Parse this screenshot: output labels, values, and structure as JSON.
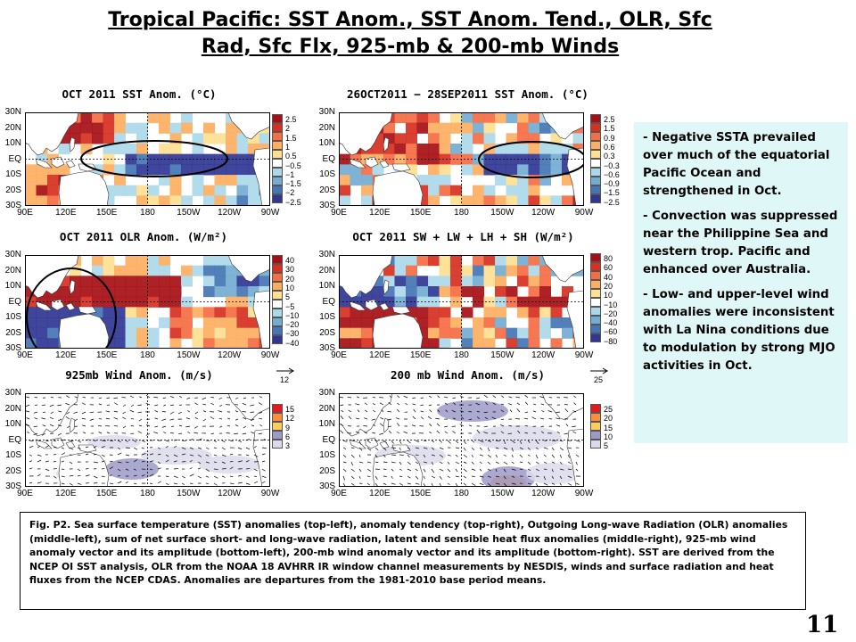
{
  "title": {
    "line1": "Tropical Pacific: SST Anom., SST Anom. Tend., OLR, Sfc",
    "line2": "Rad, Sfc Flx, 925-mb & 200-mb Winds"
  },
  "lat_labels": [
    "30N",
    "20N",
    "10N",
    "EQ",
    "10S",
    "20S",
    "30S"
  ],
  "lon_labels": [
    "90E",
    "120E",
    "150E",
    "180",
    "150W",
    "120W",
    "90W"
  ],
  "panels": {
    "sst": {
      "title": "OCT 2011 SST Anom. (°C)",
      "levels": [
        "2.5",
        "2",
        "1.5",
        "1",
        "0.5",
        "−0.5",
        "−1",
        "−1.5",
        "−2",
        "−2.5"
      ]
    },
    "sst_tend": {
      "title": "26OCT2011 − 28SEP2011 SST Anom. (°C)",
      "levels": [
        "2.5",
        "1.5",
        "0.9",
        "0.6",
        "0.3",
        "−0.3",
        "−0.6",
        "−0.9",
        "−1.5",
        "−2.5"
      ]
    },
    "olr": {
      "title": "OCT 2011 OLR Anom. (W/m²)",
      "levels": [
        "40",
        "30",
        "20",
        "10",
        "5",
        "−5",
        "−10",
        "−20",
        "−30",
        "−40"
      ]
    },
    "flux": {
      "title": "OCT 2011 SW + LW + LH + SH (W/m²)",
      "levels": [
        "80",
        "60",
        "40",
        "20",
        "10",
        "−10",
        "−20",
        "−40",
        "−60",
        "−80"
      ]
    },
    "w925": {
      "title": "925mb Wind Anom. (m/s)",
      "levels": [
        "15",
        "12",
        "9",
        "6",
        "3"
      ],
      "ref": "12"
    },
    "w200": {
      "title": "200 mb Wind Anom. (m/s)",
      "levels": [
        "25",
        "20",
        "15",
        "10",
        "5"
      ],
      "ref": "25"
    }
  },
  "colors": {
    "diverging": [
      "#a50f15",
      "#d7301f",
      "#f46d43",
      "#fdae61",
      "#fee090",
      "#ffffff",
      "#abd9e9",
      "#74add1",
      "#4575b4",
      "#313695"
    ],
    "wind": [
      "#e31a1c",
      "#fd8d3c",
      "#fecc5c",
      "#9e9ac8",
      "#dadaeb"
    ],
    "notes_bg": "#e0f7f7"
  },
  "notes": [
    "- Negative SSTA prevailed over much of the equatorial Pacific Ocean and strengthened in Oct.",
    "- Convection was suppressed near the Philippine Sea  and western trop. Pacific and enhanced over Australia.",
    "- Low- and upper-level wind anomalies were inconsistent with La Nina conditions due to modulation by strong MJO activities in Oct."
  ],
  "caption": "Fig. P2. Sea surface temperature (SST) anomalies (top-left), anomaly tendency (top-right), Outgoing Long-wave Radiation (OLR) anomalies (middle-left), sum of net surface short- and long-wave radiation, latent and sensible heat flux anomalies (middle-right), 925-mb wind anomaly vector and its amplitude (bottom-left), 200-mb wind anomaly vector and its amplitude  (bottom-right). SST are derived from the NCEP OI SST analysis, OLR from the NOAA 18 AVHRR IR window channel measurements by NESDIS, winds and surface radiation and heat fluxes from the NCEP CDAS. Anomalies are  departures from the 1981-2010  base period means.",
  "page_number": "11"
}
